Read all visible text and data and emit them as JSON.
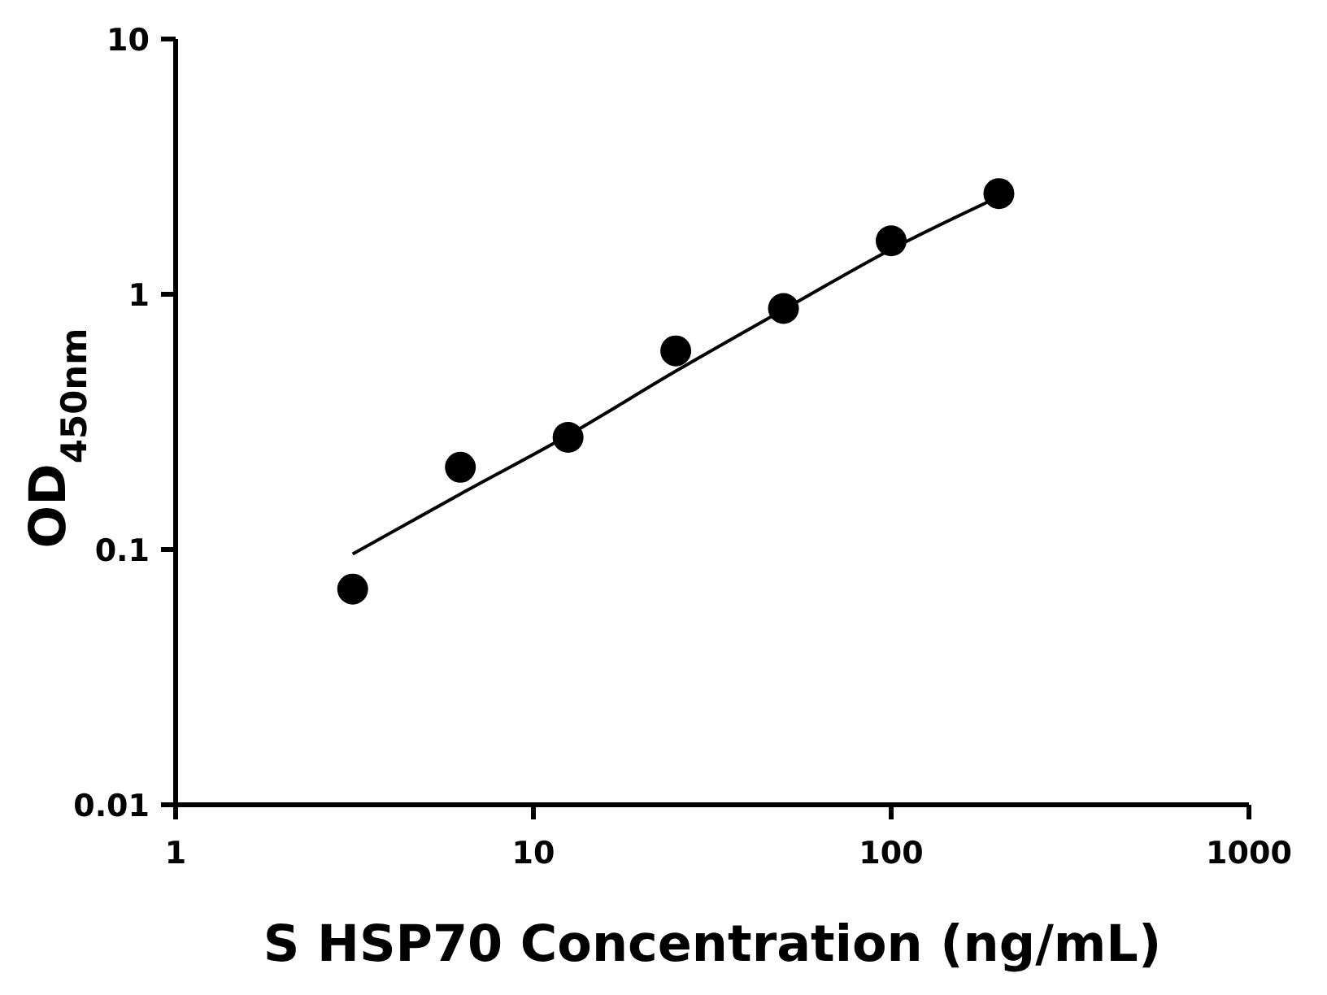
{
  "chart_data": {
    "type": "scatter",
    "xlabel": "S HSP70 Concentration (ng/mL)",
    "ylabel": "OD$_{450nm}$",
    "log": "xy",
    "xlim": [
      1,
      1000
    ],
    "xticks": [
      1,
      10,
      100,
      1000
    ],
    "ylim": [
      0.01,
      10
    ],
    "yticks": [
      0.01,
      0.1,
      1,
      10
    ],
    "grid": false,
    "series": [
      {
        "color": "#000000",
        "marker": "circle",
        "x": [
          3.125,
          6.25,
          12.5,
          25,
          50,
          100,
          200
        ],
        "values": [
          0.07,
          0.21,
          0.275,
          0.6,
          0.88,
          1.62,
          2.48
        ]
      },
      {
        "type": "line",
        "color": "#000000",
        "marker": "none",
        "line_style": "solid",
        "x": [
          3.125,
          6.25,
          12.5,
          25,
          50,
          100,
          200
        ],
        "values": [
          0.096,
          0.165,
          0.28,
          0.5,
          0.87,
          1.5,
          2.41
        ]
      }
    ]
  }
}
